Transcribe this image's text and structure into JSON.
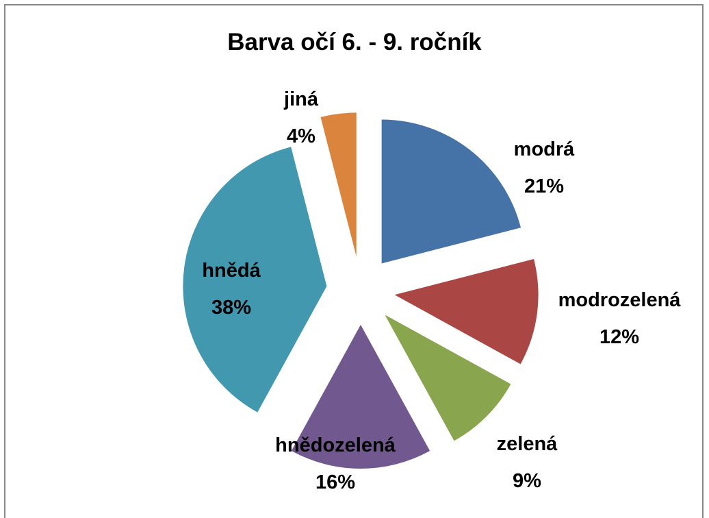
{
  "chart_data": {
    "type": "pie",
    "title": "Barva očí 6. - 9. ročník",
    "categories": [
      "modrá",
      "modrozelená",
      "zelená",
      "hnědozelená",
      "hnědá",
      "jiná"
    ],
    "values": [
      21,
      12,
      9,
      16,
      38,
      4
    ],
    "value_labels": [
      "21%",
      "12%",
      "9%",
      "16%",
      "38%",
      "4%"
    ],
    "colors": [
      "#4572a7",
      "#aa4643",
      "#89a54e",
      "#71588f",
      "#4198af",
      "#db843d"
    ]
  }
}
